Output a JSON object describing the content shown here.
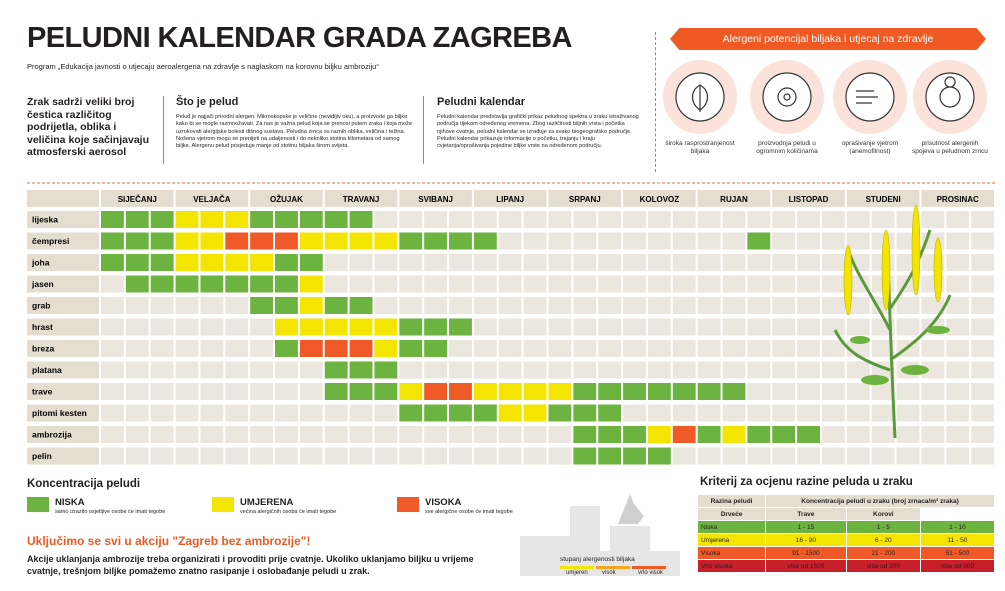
{
  "header": {
    "title": "PELUDNI KALENDAR GRADA ZAGREBA",
    "subtitle": "Program „Edukacija javnosti o utjecaju aeroalergena na zdravlje s naglaskom na korovnu biljku ambroziju“"
  },
  "intro": {
    "lead": "Zrak sadrži veliki broj čestica različitog podrijetla, oblika i veličina koje sačinjavaju atmosferski aerosol",
    "sections": [
      {
        "title": "Što je pelud",
        "text": "Pelud je najjači prirodni alergen. Mikroskopske je veličine (nevidljiv oku), a proizvode ga biljke kako bi se mogle razmnožavati. Za nas je važna pelud koja se prenosi putem zraka i koja može uzrokovati alergijske bolesti dišnog sustava. Peludna zrnca su raznih oblika, veličina i težina. Nošena vjetrom mogu se prenijeti na udaljenosti i do nekoliko stotina kilometara od samog biljke. Alergenu pelud posjeduje manje od stotinu biljaka širom svijeta."
      },
      {
        "title": "Peludni kalendar",
        "text": "Peludni kalendar predstavlja grafički prikaz peludnog spektra u zraku istraživanog područja tijekom određenog vremena. Zbog različitosti biljnih vrsta i početka njihove cvatnje, peludni kalendar se izrađuje za svako biogeografsko područje. Peludni kalendar prikazuje informacije o početku, trajanju i kraju cvjetanja/oprašivanja pojedine biljke vrste na određenom području."
      }
    ]
  },
  "allergen_panel": {
    "title": "Alergeni potencijal biljaka i utjecaj na zdravlje",
    "items": [
      "široka rasprostranjenost biljaka",
      "proizvodnja peludi u ogromnim količinama",
      "oprašivanje vjetrom (anemofilnost)",
      "prisutnost alergenih spojeva u peludnom zrncu"
    ]
  },
  "calendar": {
    "months": [
      "SIJEČANJ",
      "VELJAČA",
      "OŽUJAK",
      "TRAVANJ",
      "SVIBANJ",
      "LIPANJ",
      "SRPANJ",
      "KOLOVOZ",
      "RUJAN",
      "LISTOPAD",
      "STUDENI",
      "PROSINAC"
    ],
    "plants": [
      {
        "name": "lijeska",
        "levels": [
          0,
          0,
          0,
          1,
          1,
          1,
          0,
          0,
          0,
          0,
          0,
          null,
          null,
          null,
          null,
          null,
          null,
          null,
          null,
          null,
          null,
          null,
          null,
          null,
          null,
          null,
          null,
          null,
          null,
          null,
          null,
          null,
          null,
          null,
          null,
          null
        ]
      },
      {
        "name": "čempresi",
        "levels": [
          0,
          0,
          0,
          1,
          1,
          2,
          2,
          2,
          1,
          1,
          1,
          1,
          0,
          0,
          0,
          0,
          null,
          null,
          null,
          null,
          null,
          null,
          null,
          null,
          null,
          null,
          0,
          null,
          null,
          null,
          null,
          null,
          null,
          null,
          null,
          null
        ]
      },
      {
        "name": "joha",
        "levels": [
          0,
          0,
          0,
          1,
          1,
          1,
          1,
          0,
          0,
          null,
          null,
          null,
          null,
          null,
          null,
          null,
          null,
          null,
          null,
          null,
          null,
          null,
          null,
          null,
          null,
          null,
          null,
          null,
          null,
          null,
          null,
          null,
          null,
          null,
          null,
          null
        ]
      },
      {
        "name": "jasen",
        "levels": [
          null,
          0,
          0,
          0,
          0,
          0,
          0,
          0,
          1,
          null,
          null,
          null,
          null,
          null,
          null,
          null,
          null,
          null,
          null,
          null,
          null,
          null,
          null,
          null,
          null,
          null,
          null,
          null,
          null,
          null,
          null,
          null,
          null,
          null,
          null,
          null
        ]
      },
      {
        "name": "grab",
        "levels": [
          null,
          null,
          null,
          null,
          null,
          null,
          0,
          0,
          1,
          0,
          0,
          null,
          null,
          null,
          null,
          null,
          null,
          null,
          null,
          null,
          null,
          null,
          null,
          null,
          null,
          null,
          null,
          null,
          null,
          null,
          null,
          null,
          null,
          null,
          null,
          null
        ]
      },
      {
        "name": "hrast",
        "levels": [
          null,
          null,
          null,
          null,
          null,
          null,
          null,
          1,
          1,
          1,
          1,
          1,
          0,
          0,
          0,
          null,
          null,
          null,
          null,
          null,
          null,
          null,
          null,
          null,
          null,
          null,
          null,
          null,
          null,
          null,
          null,
          null,
          null,
          null,
          null,
          null
        ]
      },
      {
        "name": "breza",
        "levels": [
          null,
          null,
          null,
          null,
          null,
          null,
          null,
          0,
          2,
          2,
          2,
          1,
          0,
          0,
          null,
          null,
          null,
          null,
          null,
          null,
          null,
          null,
          null,
          null,
          null,
          null,
          null,
          null,
          null,
          null,
          null,
          null,
          null,
          null,
          null,
          null
        ]
      },
      {
        "name": "platana",
        "levels": [
          null,
          null,
          null,
          null,
          null,
          null,
          null,
          null,
          null,
          0,
          0,
          0,
          null,
          null,
          null,
          null,
          null,
          null,
          null,
          null,
          null,
          null,
          null,
          null,
          null,
          null,
          null,
          null,
          null,
          null,
          null,
          null,
          null,
          null,
          null,
          null
        ]
      },
      {
        "name": "trave",
        "levels": [
          null,
          null,
          null,
          null,
          null,
          null,
          null,
          null,
          null,
          0,
          0,
          0,
          1,
          2,
          2,
          1,
          1,
          1,
          1,
          0,
          0,
          0,
          0,
          0,
          0,
          0,
          null,
          null,
          null,
          null,
          null,
          null,
          null,
          null,
          null,
          null
        ]
      },
      {
        "name": "pitomi kesten",
        "levels": [
          null,
          null,
          null,
          null,
          null,
          null,
          null,
          null,
          null,
          null,
          null,
          null,
          0,
          0,
          0,
          0,
          1,
          1,
          0,
          0,
          0,
          null,
          null,
          null,
          null,
          null,
          null,
          null,
          null,
          null,
          null,
          null,
          null,
          null,
          null,
          null
        ]
      },
      {
        "name": "ambrozija",
        "levels": [
          null,
          null,
          null,
          null,
          null,
          null,
          null,
          null,
          null,
          null,
          null,
          null,
          null,
          null,
          null,
          null,
          null,
          null,
          null,
          0,
          0,
          0,
          1,
          2,
          0,
          1,
          0,
          0,
          0,
          null,
          null,
          null,
          null,
          null,
          null,
          null
        ]
      },
      {
        "name": "pelin",
        "levels": [
          null,
          null,
          null,
          null,
          null,
          null,
          null,
          null,
          null,
          null,
          null,
          null,
          null,
          null,
          null,
          null,
          null,
          null,
          null,
          0,
          0,
          0,
          0,
          null,
          null,
          null,
          null,
          null,
          null,
          null,
          null,
          null,
          null,
          null,
          null,
          null
        ]
      }
    ]
  },
  "legend": {
    "title": "Koncentracija peludi",
    "items": [
      {
        "label": "NISKA",
        "text": "samo izrazito osjetljive osobe će imati tegobe",
        "color": "#6cb33f"
      },
      {
        "label": "UMJERENA",
        "text": "većina alergičnih osoba će imati tegobe",
        "color": "#f4e500"
      },
      {
        "label": "VISOKA",
        "text": "sve alergične osobe će imati tegobe",
        "color": "#f05a28"
      }
    ]
  },
  "campaign": {
    "title": "Uključimo se svi u akciju \"Zagreb bez ambrozije\"!",
    "text": "Akcije uklanjanja ambrozije treba organizirati i provoditi prije cvatnje. Ukoliko uklanjamo biljku u vrijeme cvatnje, trešnjom biljke pomažemo znatno rasipanje i oslobađanje peludi u zrak."
  },
  "allergenicity_scale": {
    "title": "stupanj alergenosti biljaka",
    "levels": [
      "umjeren",
      "visok",
      "vrlo visok"
    ]
  },
  "criteria": {
    "title": "Kriterij za ocjenu razine peluda u zraku",
    "level_header": "Razina peludi",
    "concentration_header": "Koncentracija peludi u zraku (broj zrnaca/m³ zraka)",
    "columns": [
      "Drveće",
      "Trave",
      "Korovi"
    ],
    "rows": [
      {
        "level": "Niska",
        "color": "#6cb33f",
        "cells": [
          "1 - 15",
          "1 - 5",
          "1 - 10"
        ]
      },
      {
        "level": "Umjerena",
        "color": "#f4e500",
        "cells": [
          "16 - 90",
          "6 - 20",
          "11 - 50"
        ]
      },
      {
        "level": "Visoka",
        "color": "#f05a28",
        "cells": [
          "91 - 1500",
          "21 - 200",
          "51 - 500"
        ]
      },
      {
        "level": "Vrlo visoka",
        "color": "#c8202a",
        "cells": [
          "više od 1500",
          "više od 200",
          "više od 500"
        ]
      }
    ]
  }
}
